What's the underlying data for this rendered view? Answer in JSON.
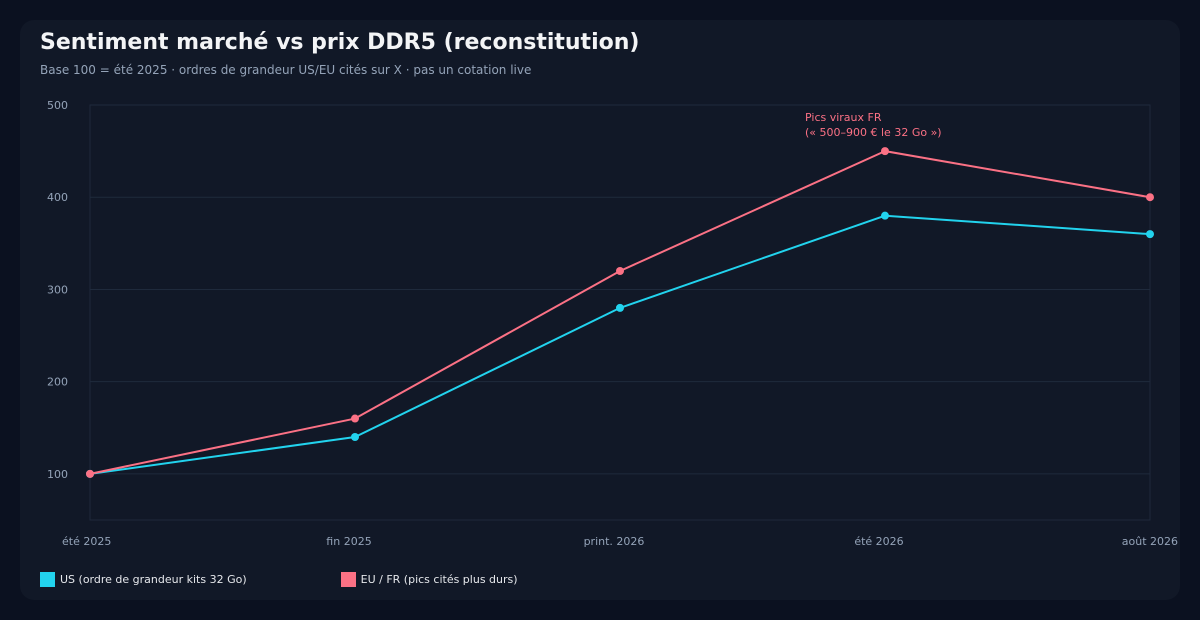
{
  "title": "Sentiment marché vs prix DDR5 (reconstitution)",
  "subtitle": "Base 100 = été 2025 · ordres de grandeur US/EU cités sur X · pas un cotation live",
  "chart_data": {
    "type": "line",
    "categories": [
      "été 2025",
      "fin 2025",
      "print. 2026",
      "été 2026",
      "août 2026"
    ],
    "ylim": [
      50,
      500
    ],
    "yticks": [
      100,
      200,
      300,
      400,
      500
    ],
    "grid": true,
    "legend_position": "bottom-left",
    "series": [
      {
        "name": "US (ordre de grandeur kits 32 Go)",
        "color": "#22d3ee",
        "values": [
          100,
          140,
          280,
          380,
          360
        ]
      },
      {
        "name": "EU / FR (pics cités plus durs)",
        "color": "#fb7185",
        "values": [
          100,
          160,
          320,
          450,
          400
        ]
      }
    ],
    "annotation": {
      "category": "été 2026",
      "series": 1,
      "lines": [
        "Pics viraux FR",
        "(« 500–900 € le 32 Go »)"
      ],
      "color": "#fb7185"
    }
  }
}
